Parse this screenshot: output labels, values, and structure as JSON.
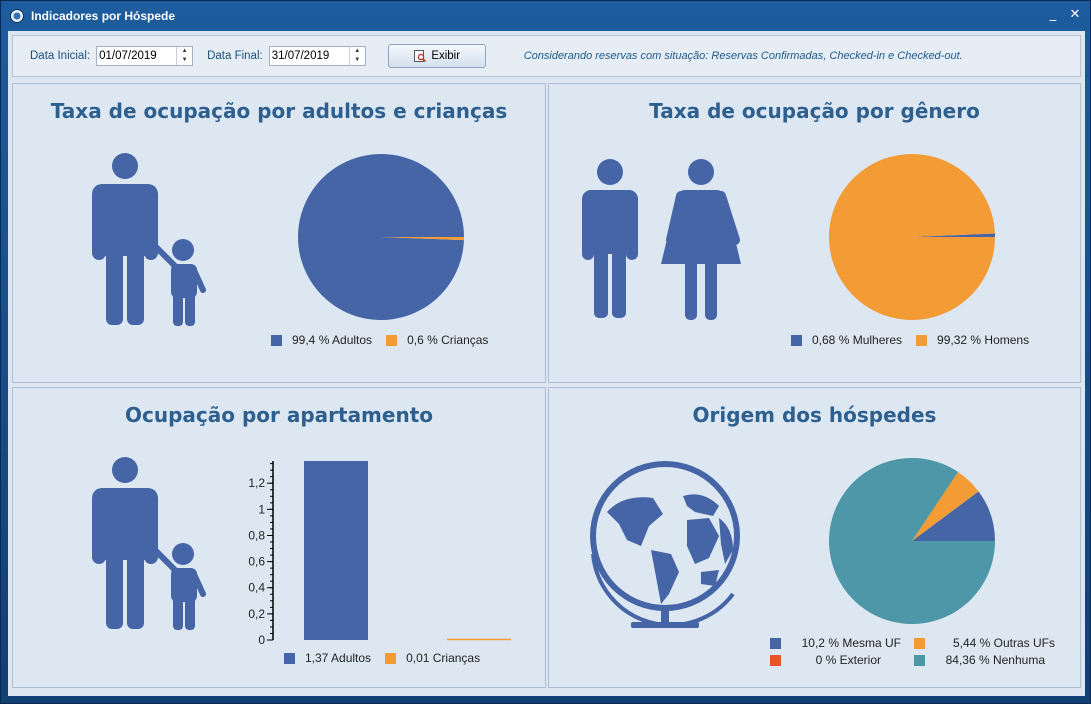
{
  "window": {
    "title": "Indicadores por Hóspede",
    "minimize_label": "_",
    "close_label": "✕"
  },
  "toolbar": {
    "data_inicial_label": "Data Inicial:",
    "data_inicial_value": "01/07/2019",
    "data_final_label": "Data Final:",
    "data_final_value": "31/07/2019",
    "exibir_label": "Exibir",
    "note": "Considerando reservas com situação: Reservas Confirmadas, Checked-in e Checked-out."
  },
  "colors": {
    "blue": "#4565a6",
    "orange": "#f39b35",
    "red": "#e8532b",
    "teal": "#4e97a8",
    "icon": "#4565a6"
  },
  "panels": {
    "adultos": {
      "title": "Taxa de ocupação por adultos e crianças",
      "icon": "adult-child-icon"
    },
    "genero": {
      "title": "Taxa de ocupação por gênero",
      "icon": "man-woman-icon"
    },
    "apartamento": {
      "title": "Ocupação por apartamento",
      "icon": "adult-child-icon"
    },
    "origem": {
      "title": "Origem dos hóspedes",
      "icon": "globe-icon"
    }
  },
  "chart_data": [
    {
      "id": "adultos",
      "type": "pie",
      "series": [
        {
          "name": "Adultos",
          "value": 99.4,
          "label": "99,4 % Adultos",
          "color": "#4565a6"
        },
        {
          "name": "Crianças",
          "value": 0.6,
          "label": "0,6 % Crianças",
          "color": "#f39b35"
        }
      ]
    },
    {
      "id": "genero",
      "type": "pie",
      "series": [
        {
          "name": "Mulheres",
          "value": 0.68,
          "label": "0,68 % Mulheres",
          "color": "#4565a6"
        },
        {
          "name": "Homens",
          "value": 99.32,
          "label": "99,32 % Homens",
          "color": "#f39b35"
        }
      ]
    },
    {
      "id": "apartamento",
      "type": "bar",
      "categories": [
        "Adultos",
        "Crianças"
      ],
      "values": [
        1.37,
        0.01
      ],
      "legend": [
        "1,37 Adultos",
        "0,01 Crianças"
      ],
      "colors": [
        "#4565a6",
        "#f39b35"
      ],
      "ylim": [
        0,
        1.37
      ],
      "yticks": [
        0,
        0.2,
        0.4,
        0.6,
        0.8,
        1,
        1.2
      ],
      "ytick_labels": [
        "0",
        "0,2",
        "0,4",
        "0,6",
        "0,8",
        "1",
        "1,2"
      ]
    },
    {
      "id": "origem",
      "type": "pie",
      "series": [
        {
          "name": "Mesma UF",
          "value": 10.2,
          "label": "10,2 % Mesma UF",
          "color": "#4565a6"
        },
        {
          "name": "Outras UFs",
          "value": 5.44,
          "label": "5,44 % Outras UFs",
          "color": "#f39b35"
        },
        {
          "name": "Exterior",
          "value": 0,
          "label": "0 % Exterior",
          "color": "#e8532b"
        },
        {
          "name": "Nenhuma",
          "value": 84.36,
          "label": "84,36 % Nenhuma",
          "color": "#4e97a8"
        }
      ]
    }
  ]
}
